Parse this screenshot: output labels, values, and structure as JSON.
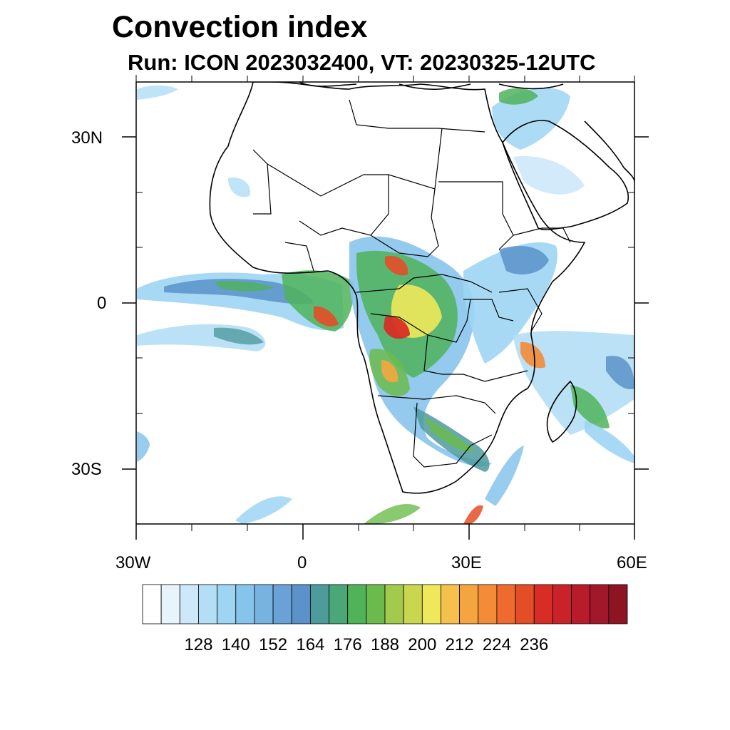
{
  "title": "Convection index",
  "subtitle": "Run: ICON 2023032400,  VT: 20230325-12UTC",
  "axes": {
    "lat_labels": [
      "30N",
      "0",
      "30S"
    ],
    "lon_labels": [
      "30W",
      "0",
      "30E",
      "60E"
    ],
    "lon_range": [
      -30,
      60
    ],
    "lat_range": [
      -40,
      40
    ]
  },
  "colorbar": {
    "colors": [
      "#ffffff",
      "#e8f4fc",
      "#cde8f8",
      "#b4def6",
      "#9dd5f3",
      "#87c4ec",
      "#76b3e1",
      "#6aa2d7",
      "#5a92c9",
      "#4e9b9c",
      "#49a778",
      "#4fb35a",
      "#6bbb4c",
      "#a3ca4d",
      "#c9d74f",
      "#eee85a",
      "#f6c04c",
      "#f5a53e",
      "#f48b37",
      "#ef6b2d",
      "#e44e27",
      "#d82d24",
      "#ca2229",
      "#b81b2a",
      "#a3172a",
      "#8c1423"
    ],
    "labels": [
      "128",
      "140",
      "152",
      "164",
      "176",
      "188",
      "200",
      "212",
      "224",
      "236"
    ]
  }
}
